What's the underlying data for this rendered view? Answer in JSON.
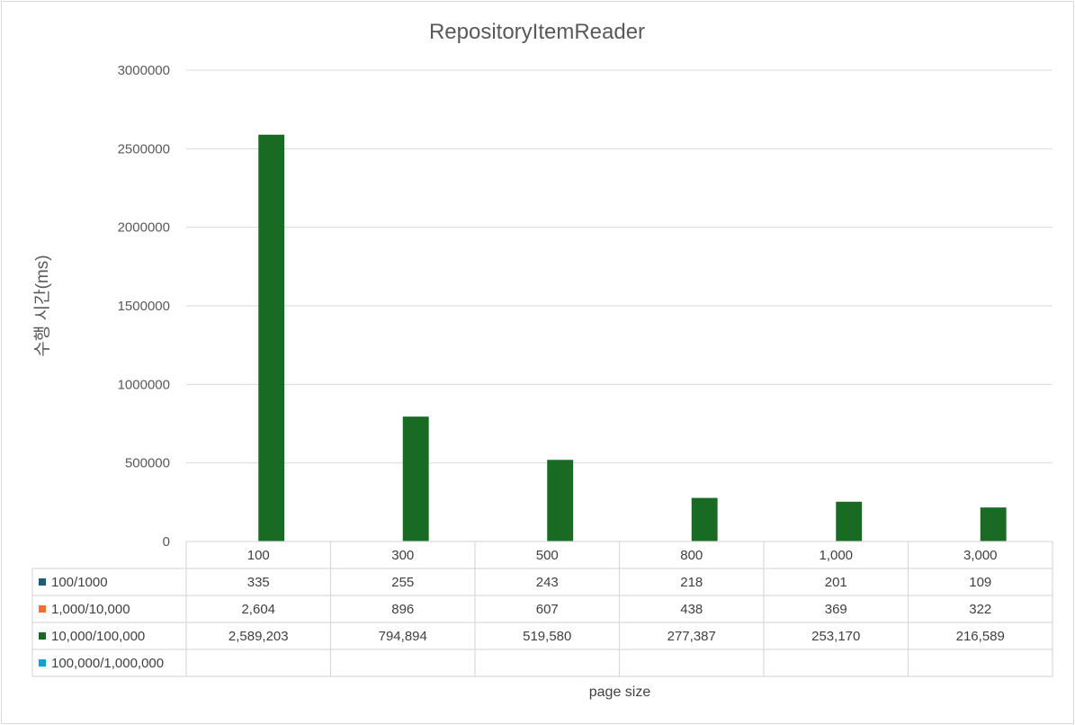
{
  "chart_data": {
    "type": "bar",
    "title": "RepositoryItemReader",
    "ylabel": "수행 시간(ms)",
    "xlabel": "page size",
    "ylim": [
      0,
      3000000
    ],
    "yticks": [
      0,
      500000,
      1000000,
      1500000,
      2000000,
      2500000,
      3000000
    ],
    "ytick_labels": [
      "0",
      "500000",
      "1000000",
      "1500000",
      "2000000",
      "2500000",
      "3000000"
    ],
    "grid": true,
    "legend": "data-table",
    "categories": [
      "100",
      "300",
      "500",
      "800",
      "1,000",
      "3,000"
    ],
    "series": [
      {
        "name": "100/1000",
        "color": "#1f5c7a",
        "values": [
          335,
          255,
          243,
          218,
          201,
          109
        ],
        "labels": [
          "335",
          "255",
          "243",
          "218",
          "201",
          "109"
        ]
      },
      {
        "name": "1,000/10,000",
        "color": "#e97132",
        "values": [
          2604,
          896,
          607,
          438,
          369,
          322
        ],
        "labels": [
          "2,604",
          "896",
          "607",
          "438",
          "369",
          "322"
        ]
      },
      {
        "name": "10,000/100,000",
        "color": "#196b24",
        "values": [
          2589203,
          794894,
          519580,
          277387,
          253170,
          216589
        ],
        "labels": [
          "2,589,203",
          "794,894",
          "519,580",
          "277,387",
          "253,170",
          "216,589"
        ]
      },
      {
        "name": "100,000/1,000,000",
        "color": "#0f9ed5",
        "values": [
          null,
          null,
          null,
          null,
          null,
          null
        ],
        "labels": [
          "",
          "",
          "",
          "",
          "",
          ""
        ]
      }
    ]
  }
}
